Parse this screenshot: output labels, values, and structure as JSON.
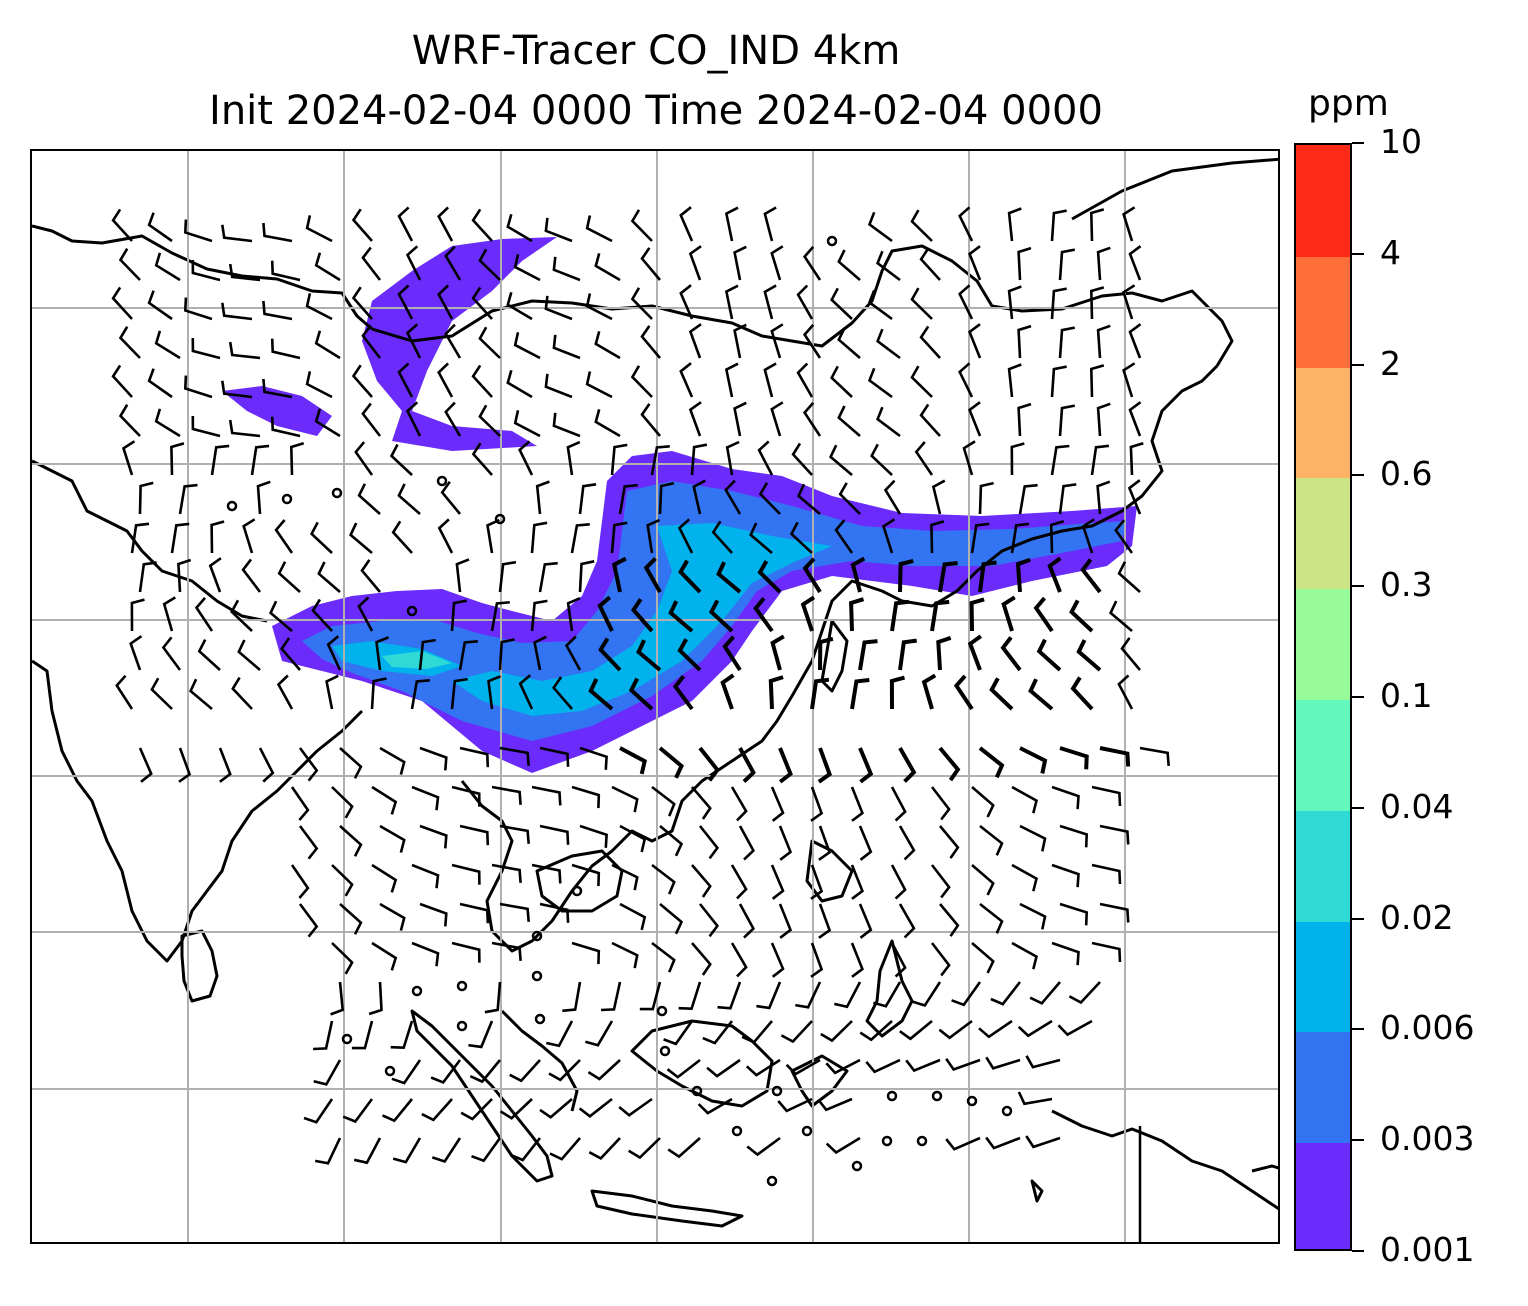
{
  "title": {
    "line1": "WRF-Tracer CO_IND 4km",
    "line2": "Init 2024-02-04 0000 Time 2024-02-04 0000"
  },
  "colorbar": {
    "unit": "ppm",
    "levels": [
      "0.001",
      "0.003",
      "0.006",
      "0.02",
      "0.04",
      "0.1",
      "0.3",
      "0.6",
      "2",
      "4",
      "10"
    ],
    "colors": [
      "#6a2bfb",
      "#3274f1",
      "#02b2ed",
      "#2ed9d6",
      "#63f8be",
      "#98fb99",
      "#cce386",
      "#fdb366",
      "#fe6e39",
      "#fd2a17"
    ]
  },
  "map": {
    "gridlines": true,
    "wind_barbs": true,
    "coastlines": true,
    "colors": {
      "grid": "#b0b0b0",
      "coast": "#000000",
      "barb": "#000000"
    }
  }
}
